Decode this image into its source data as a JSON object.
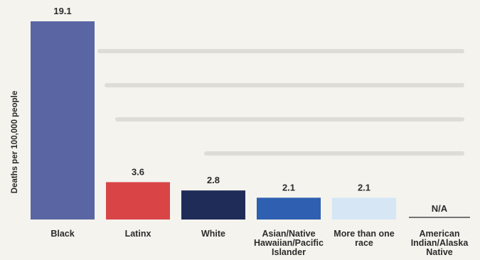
{
  "chart_data": {
    "type": "bar",
    "title": "",
    "xlabel": "",
    "ylabel": "Deaths per 100,000 people",
    "ylim": [
      0,
      19.1
    ],
    "grid": false,
    "categories": [
      "Black",
      "Latinx",
      "White",
      "Asian/Native Hawaiian/Pacific Islander",
      "More than one race",
      "American Indian/Alaska Native"
    ],
    "category_lines": [
      [
        "Black"
      ],
      [
        "Latinx"
      ],
      [
        "White"
      ],
      [
        "Asian/Native",
        "Hawaiian/Pacific",
        "Islander"
      ],
      [
        "More than one",
        "race"
      ],
      [
        "American",
        "Indian/Alaska",
        "Native"
      ]
    ],
    "values": [
      19.1,
      3.6,
      2.8,
      2.1,
      2.1,
      null
    ],
    "value_labels": [
      "19.1",
      "3.6",
      "2.8",
      "2.1",
      "2.1",
      "N/A"
    ],
    "colors": [
      "#5a66a4",
      "#d94547",
      "#1f2c58",
      "#2f5fb0",
      "#d6e6f4",
      "#4a4a4a"
    ]
  }
}
